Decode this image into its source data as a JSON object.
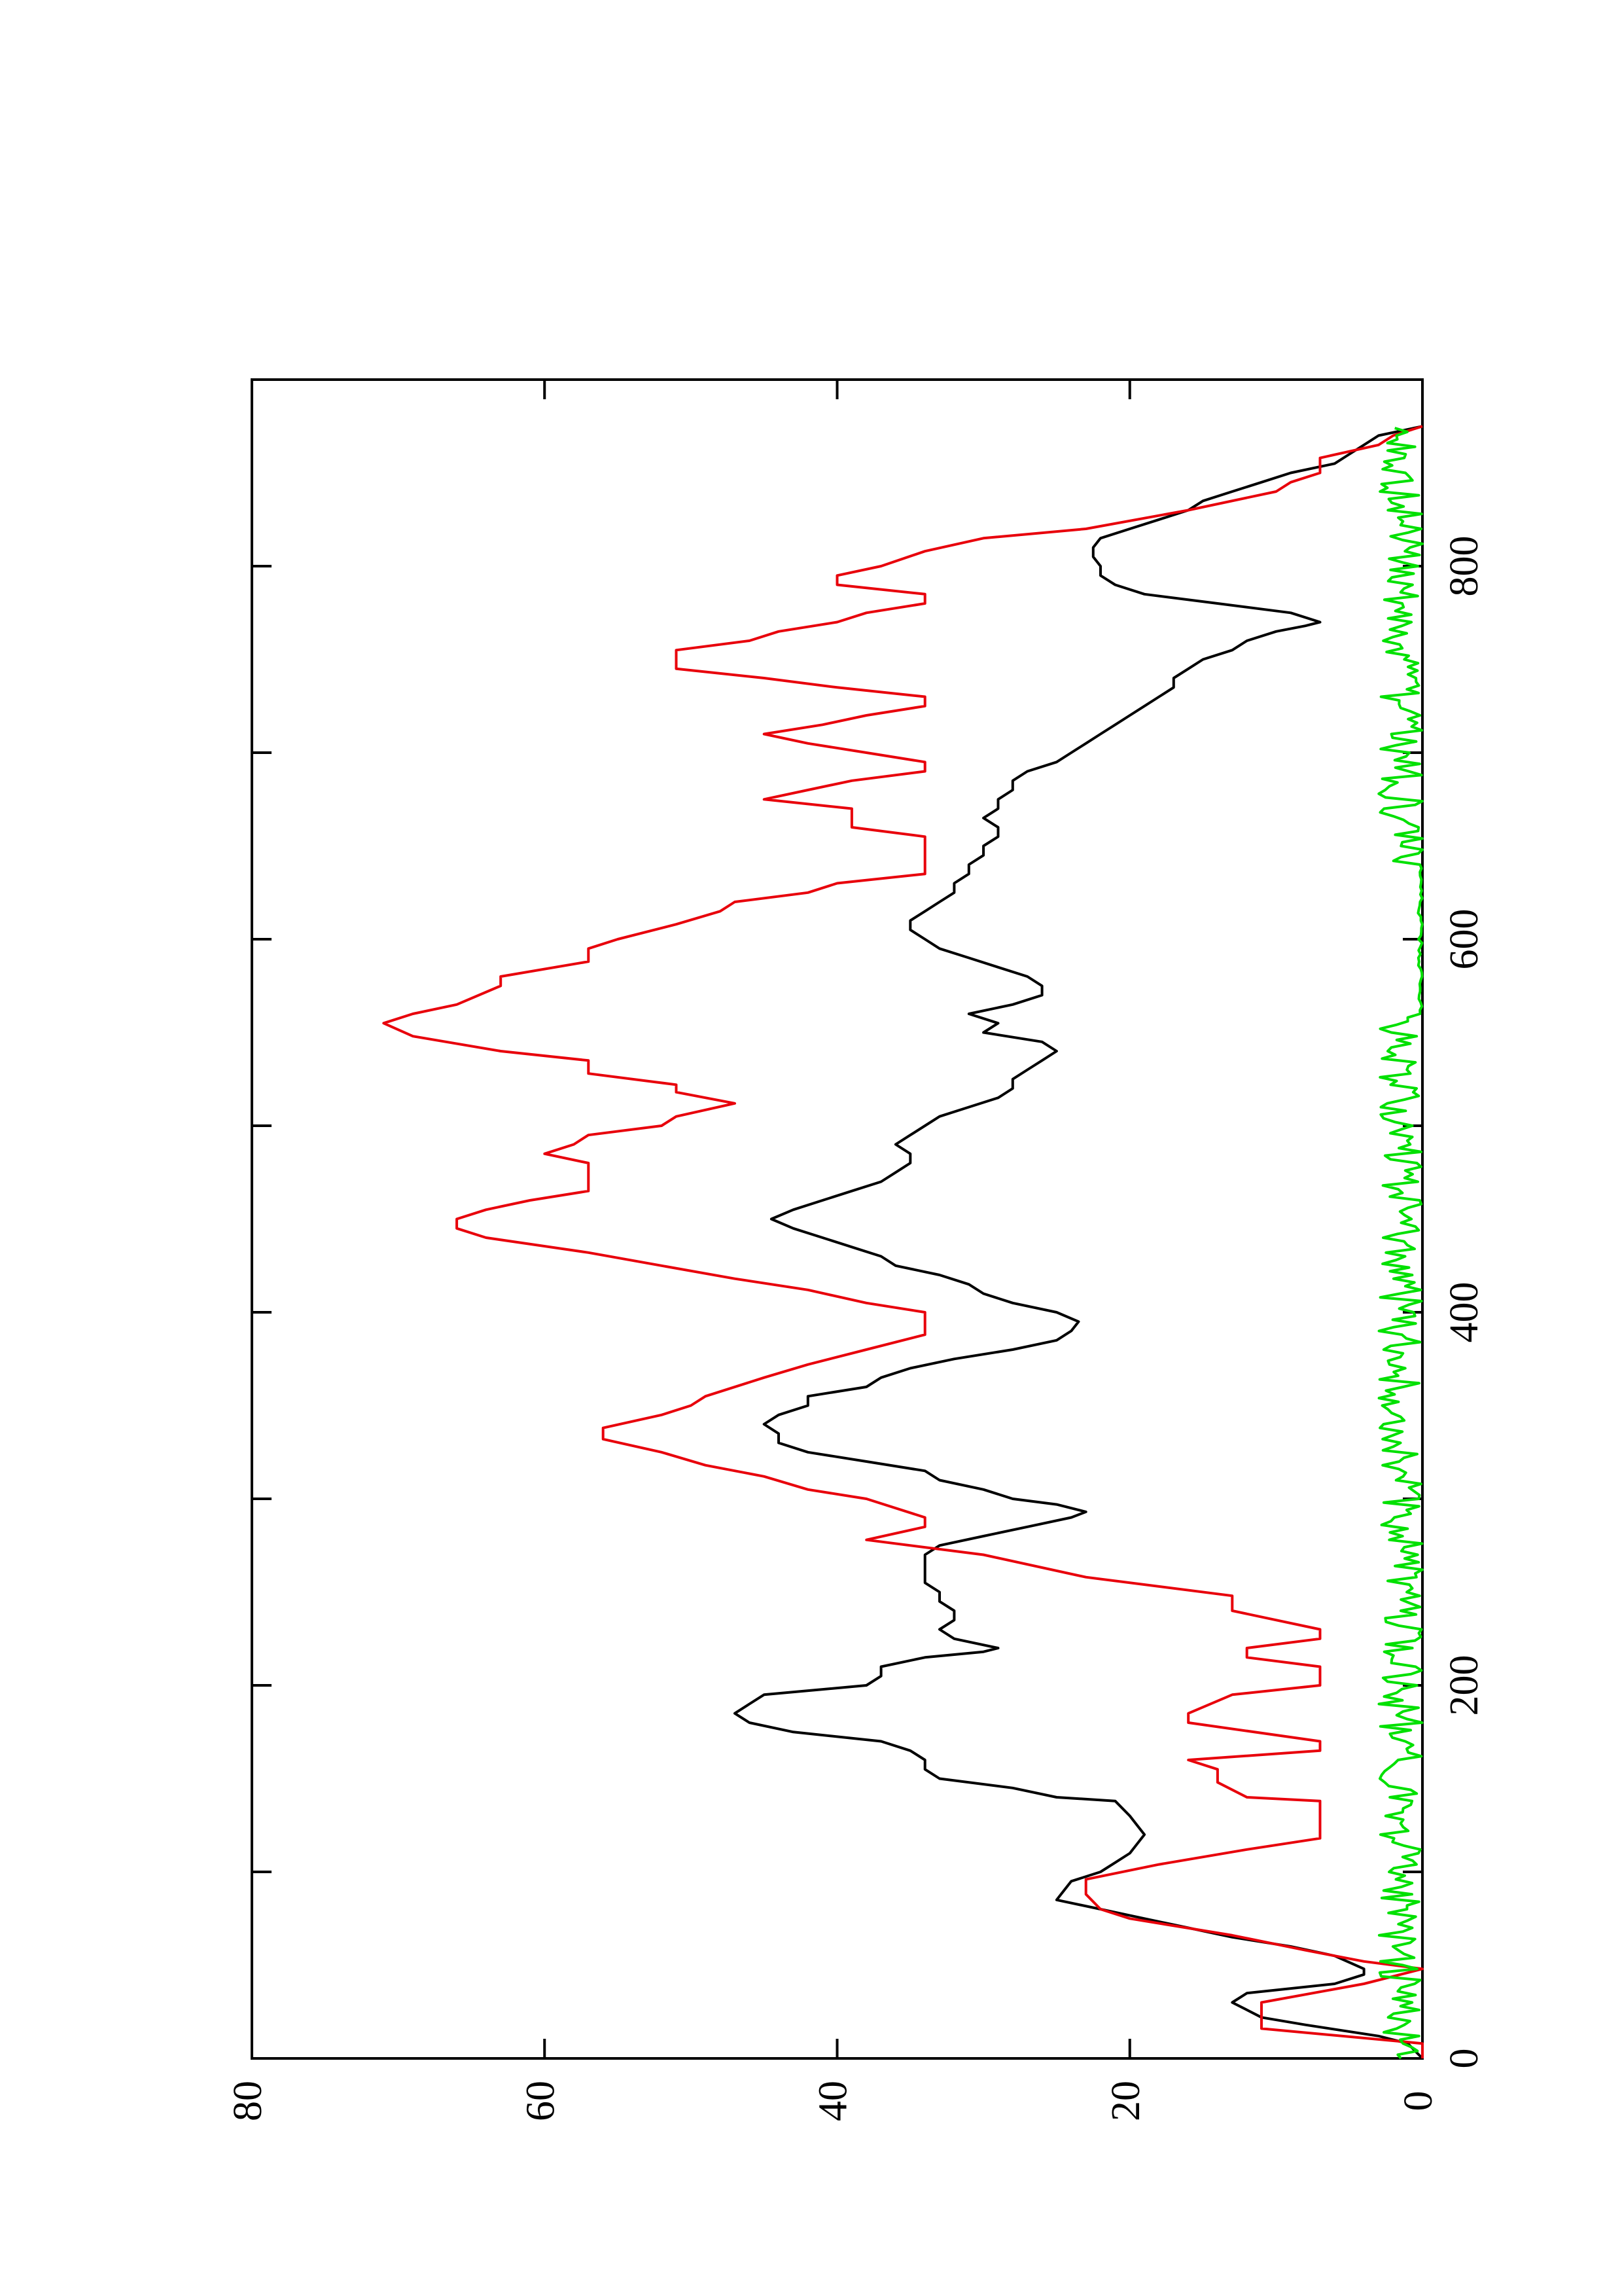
{
  "chart_data": {
    "type": "line",
    "orientation": "rotated-90-clockwise",
    "title": "",
    "xlabel": "",
    "ylabel": "",
    "xlim": [
      0,
      900
    ],
    "ylim": [
      0,
      80
    ],
    "x_ticks": [
      0,
      200,
      400,
      600,
      800
    ],
    "x_minor_ticks": [
      100,
      300,
      500,
      700
    ],
    "y_ticks": [
      0,
      20,
      40,
      60,
      80
    ],
    "grid": false,
    "legend": "none",
    "series": [
      {
        "color": "#000000",
        "style": "smooth-line",
        "points": [
          [
            0,
            0
          ],
          [
            8,
            1
          ],
          [
            12,
            3
          ],
          [
            18,
            8
          ],
          [
            22,
            11
          ],
          [
            26,
            12
          ],
          [
            30,
            13
          ],
          [
            35,
            12
          ],
          [
            40,
            6
          ],
          [
            45,
            4
          ],
          [
            48,
            4
          ],
          [
            55,
            6
          ],
          [
            60,
            9
          ],
          [
            65,
            13
          ],
          [
            70,
            16
          ],
          [
            75,
            19
          ],
          [
            80,
            22
          ],
          [
            85,
            25
          ],
          [
            90,
            24.5
          ],
          [
            95,
            24
          ],
          [
            100,
            22
          ],
          [
            105,
            21
          ],
          [
            110,
            20
          ],
          [
            115,
            19.5
          ],
          [
            120,
            19
          ],
          [
            125,
            19.5
          ],
          [
            130,
            20
          ],
          [
            138,
            21
          ],
          [
            140,
            25
          ],
          [
            145,
            28
          ],
          [
            150,
            33
          ],
          [
            155,
            34
          ],
          [
            160,
            34
          ],
          [
            165,
            35
          ],
          [
            170,
            37
          ],
          [
            175,
            43
          ],
          [
            180,
            46
          ],
          [
            185,
            47
          ],
          [
            190,
            46
          ],
          [
            195,
            45
          ],
          [
            200,
            38
          ],
          [
            205,
            37
          ],
          [
            210,
            37
          ],
          [
            215,
            34
          ],
          [
            218,
            30
          ],
          [
            220,
            29
          ],
          [
            225,
            32
          ],
          [
            230,
            33
          ],
          [
            235,
            32
          ],
          [
            240,
            32
          ],
          [
            245,
            33
          ],
          [
            250,
            33
          ],
          [
            255,
            34
          ],
          [
            260,
            34
          ],
          [
            265,
            34
          ],
          [
            270,
            34
          ],
          [
            275,
            33
          ],
          [
            280,
            30
          ],
          [
            285,
            27
          ],
          [
            290,
            24
          ],
          [
            293,
            23
          ],
          [
            297,
            25
          ],
          [
            300,
            28
          ],
          [
            305,
            30
          ],
          [
            310,
            33
          ],
          [
            315,
            34
          ],
          [
            320,
            38
          ],
          [
            325,
            42
          ],
          [
            330,
            44
          ],
          [
            335,
            44
          ],
          [
            340,
            45
          ],
          [
            345,
            44
          ],
          [
            350,
            42
          ],
          [
            355,
            42
          ],
          [
            360,
            38
          ],
          [
            365,
            37
          ],
          [
            370,
            35
          ],
          [
            375,
            32
          ],
          [
            380,
            28
          ],
          [
            385,
            25
          ],
          [
            390,
            24
          ],
          [
            395,
            23.5
          ],
          [
            400,
            25
          ],
          [
            405,
            28
          ],
          [
            410,
            30
          ],
          [
            415,
            31
          ],
          [
            420,
            33
          ],
          [
            425,
            36
          ],
          [
            430,
            37
          ],
          [
            435,
            39
          ],
          [
            440,
            41
          ],
          [
            445,
            43
          ],
          [
            450,
            44.5
          ],
          [
            455,
            43
          ],
          [
            460,
            41
          ],
          [
            465,
            39
          ],
          [
            470,
            37
          ],
          [
            475,
            36
          ],
          [
            480,
            35
          ],
          [
            485,
            35
          ],
          [
            490,
            36
          ],
          [
            495,
            35
          ],
          [
            500,
            34
          ],
          [
            505,
            33
          ],
          [
            510,
            31
          ],
          [
            515,
            29
          ],
          [
            520,
            28
          ],
          [
            525,
            28
          ],
          [
            530,
            27
          ],
          [
            535,
            26
          ],
          [
            540,
            25
          ],
          [
            545,
            26
          ],
          [
            550,
            30
          ],
          [
            555,
            29
          ],
          [
            560,
            31
          ],
          [
            565,
            28
          ],
          [
            570,
            26
          ],
          [
            575,
            26
          ],
          [
            580,
            27
          ],
          [
            585,
            29
          ],
          [
            590,
            31
          ],
          [
            595,
            33
          ],
          [
            600,
            34
          ],
          [
            605,
            35
          ],
          [
            610,
            35
          ],
          [
            615,
            34
          ],
          [
            620,
            33
          ],
          [
            625,
            32
          ],
          [
            630,
            32
          ],
          [
            635,
            31
          ],
          [
            640,
            31
          ],
          [
            645,
            30
          ],
          [
            650,
            30
          ],
          [
            655,
            29
          ],
          [
            660,
            29
          ],
          [
            665,
            30
          ],
          [
            670,
            29
          ],
          [
            675,
            29
          ],
          [
            680,
            28
          ],
          [
            685,
            28
          ],
          [
            690,
            27
          ],
          [
            695,
            25
          ],
          [
            700,
            24
          ],
          [
            705,
            23
          ],
          [
            710,
            22
          ],
          [
            715,
            21
          ],
          [
            720,
            20
          ],
          [
            725,
            19
          ],
          [
            730,
            18
          ],
          [
            735,
            17
          ],
          [
            740,
            17
          ],
          [
            745,
            16
          ],
          [
            750,
            15
          ],
          [
            755,
            13
          ],
          [
            760,
            12
          ],
          [
            765,
            10
          ],
          [
            768,
            8
          ],
          [
            770,
            7
          ],
          [
            775,
            9
          ],
          [
            780,
            14
          ],
          [
            785,
            19
          ],
          [
            790,
            21
          ],
          [
            795,
            22
          ],
          [
            800,
            22
          ],
          [
            805,
            22.5
          ],
          [
            810,
            22.5
          ],
          [
            815,
            22
          ],
          [
            820,
            20
          ],
          [
            825,
            18
          ],
          [
            830,
            16
          ],
          [
            835,
            15
          ],
          [
            840,
            13
          ],
          [
            845,
            11
          ],
          [
            850,
            9
          ],
          [
            855,
            6
          ],
          [
            860,
            5
          ],
          [
            865,
            4
          ],
          [
            870,
            3
          ],
          [
            875,
            0
          ]
        ]
      },
      {
        "color": "#e8000b",
        "style": "stepped-line",
        "points": [
          [
            0,
            0
          ],
          [
            8,
            0
          ],
          [
            16,
            11
          ],
          [
            30,
            11
          ],
          [
            40,
            4
          ],
          [
            48,
            0
          ],
          [
            52,
            4
          ],
          [
            58,
            8
          ],
          [
            66,
            13
          ],
          [
            75,
            20
          ],
          [
            80,
            22
          ],
          [
            88,
            23
          ],
          [
            96,
            23
          ],
          [
            104,
            18
          ],
          [
            112,
            12
          ],
          [
            118,
            7
          ],
          [
            130,
            7
          ],
          [
            138,
            7
          ],
          [
            140,
            12
          ],
          [
            148,
            14
          ],
          [
            155,
            14
          ],
          [
            160,
            16
          ],
          [
            165,
            7
          ],
          [
            170,
            7
          ],
          [
            180,
            16
          ],
          [
            185,
            16
          ],
          [
            195,
            13
          ],
          [
            200,
            7
          ],
          [
            210,
            7
          ],
          [
            215,
            12
          ],
          [
            220,
            12
          ],
          [
            225,
            7
          ],
          [
            230,
            7
          ],
          [
            240,
            13
          ],
          [
            248,
            13
          ],
          [
            258,
            23
          ],
          [
            270,
            30
          ],
          [
            278,
            38
          ],
          [
            285,
            34
          ],
          [
            290,
            34
          ],
          [
            300,
            38
          ],
          [
            305,
            42
          ],
          [
            312,
            45
          ],
          [
            318,
            49
          ],
          [
            325,
            52
          ],
          [
            332,
            56
          ],
          [
            338,
            56
          ],
          [
            345,
            52
          ],
          [
            350,
            50
          ],
          [
            355,
            49
          ],
          [
            365,
            45
          ],
          [
            372,
            42
          ],
          [
            380,
            38
          ],
          [
            388,
            34
          ],
          [
            395,
            34
          ],
          [
            400,
            34
          ],
          [
            405,
            38
          ],
          [
            412,
            42
          ],
          [
            418,
            47
          ],
          [
            425,
            52
          ],
          [
            432,
            57
          ],
          [
            440,
            64
          ],
          [
            445,
            66
          ],
          [
            450,
            66
          ],
          [
            455,
            64
          ],
          [
            460,
            61
          ],
          [
            465,
            57
          ],
          [
            470,
            57
          ],
          [
            480,
            57
          ],
          [
            485,
            60
          ],
          [
            490,
            58
          ],
          [
            495,
            57
          ],
          [
            500,
            52
          ],
          [
            505,
            51
          ],
          [
            512,
            47
          ],
          [
            518,
            51
          ],
          [
            522,
            51
          ],
          [
            528,
            57
          ],
          [
            535,
            57
          ],
          [
            540,
            63
          ],
          [
            548,
            69
          ],
          [
            555,
            71
          ],
          [
            560,
            69
          ],
          [
            565,
            66
          ],
          [
            575,
            63
          ],
          [
            580,
            63
          ],
          [
            588,
            57
          ],
          [
            595,
            57
          ],
          [
            600,
            55
          ],
          [
            608,
            51
          ],
          [
            615,
            48
          ],
          [
            620,
            47
          ],
          [
            625,
            42
          ],
          [
            630,
            40
          ],
          [
            635,
            34
          ],
          [
            640,
            34
          ],
          [
            648,
            34
          ],
          [
            655,
            34
          ],
          [
            660,
            39
          ],
          [
            670,
            39
          ],
          [
            675,
            45
          ],
          [
            680,
            42
          ],
          [
            685,
            39
          ],
          [
            690,
            34
          ],
          [
            695,
            34
          ],
          [
            700,
            38
          ],
          [
            705,
            42
          ],
          [
            710,
            45
          ],
          [
            715,
            41
          ],
          [
            720,
            38
          ],
          [
            725,
            34
          ],
          [
            730,
            34
          ],
          [
            735,
            40
          ],
          [
            740,
            45
          ],
          [
            745,
            51
          ],
          [
            755,
            51
          ],
          [
            760,
            46
          ],
          [
            765,
            44
          ],
          [
            770,
            40
          ],
          [
            775,
            38
          ],
          [
            780,
            34
          ],
          [
            785,
            34
          ],
          [
            790,
            40
          ],
          [
            795,
            40
          ],
          [
            800,
            37
          ],
          [
            808,
            34
          ],
          [
            815,
            30
          ],
          [
            820,
            23
          ],
          [
            830,
            16
          ],
          [
            840,
            10
          ],
          [
            845,
            9
          ],
          [
            850,
            7
          ],
          [
            858,
            7
          ],
          [
            865,
            3
          ],
          [
            870,
            2
          ],
          [
            875,
            0
          ]
        ]
      },
      {
        "color": "#00e000",
        "style": "noisy-line",
        "amplitude_range": [
          0,
          3
        ],
        "noise_seed": 7,
        "quiet_x_ranges": [
          [
            560,
            640
          ]
        ],
        "points_description_note": ""
      }
    ]
  }
}
